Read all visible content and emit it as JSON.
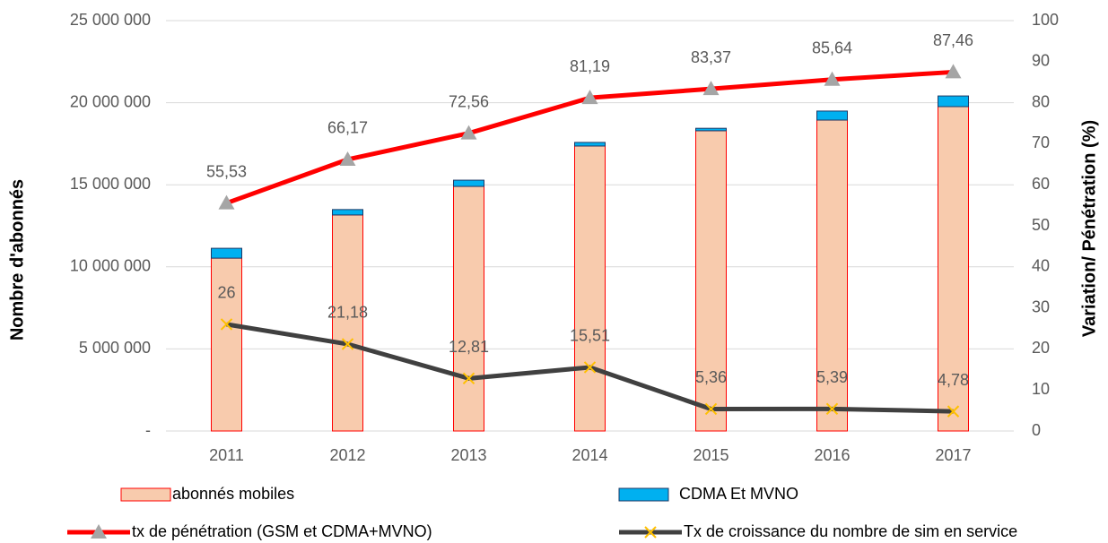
{
  "chart_data": {
    "type": "bar-line",
    "categories": [
      "2011",
      "2012",
      "2013",
      "2014",
      "2015",
      "2016",
      "2017"
    ],
    "ylabel": "Nombre d'abonnés",
    "y2label": "Variation/ Pénétration (%)",
    "ylim": [
      0,
      25000000
    ],
    "yticks": [
      {
        "value": 0,
        "label": "-"
      },
      {
        "value": 5000000,
        "label": "5 000 000"
      },
      {
        "value": 10000000,
        "label": "10 000 000"
      },
      {
        "value": 15000000,
        "label": "15 000 000"
      },
      {
        "value": 20000000,
        "label": "20 000 000"
      },
      {
        "value": 25000000,
        "label": "25 000 000"
      }
    ],
    "y2lim": [
      0,
      100
    ],
    "y2ticks": [
      0,
      10,
      20,
      30,
      40,
      50,
      60,
      70,
      80,
      90,
      100
    ],
    "grid": true,
    "series": [
      {
        "name": "abonnés mobiles",
        "type": "bar",
        "color": "#f8cbad",
        "edge": "#ff0000",
        "values": [
          10530000,
          13160000,
          14900000,
          17360000,
          18290000,
          18940000,
          19760000
        ]
      },
      {
        "name": "CDMA Et MVNO",
        "type": "bar",
        "color": "#00b0f0",
        "edge": "#1f3864",
        "values": [
          600000,
          330000,
          380000,
          220000,
          150000,
          550000,
          650000
        ]
      },
      {
        "name": "tx de pénétration (GSM et CDMA+MVNO)",
        "type": "line",
        "axis": "y2",
        "color": "#ff0000",
        "marker_color": "#a5a5a5",
        "values": [
          55.53,
          66.17,
          72.56,
          81.19,
          83.37,
          85.64,
          87.46
        ],
        "value_labels": [
          "55,53",
          "66,17",
          "72,56",
          "81,19",
          "83,37",
          "85,64",
          "87,46"
        ]
      },
      {
        "name": "Tx de croissance  du nombre de sim en service",
        "type": "line",
        "axis": "y2",
        "color": "#404040",
        "marker_color": "#ffc000",
        "values": [
          26,
          21.18,
          12.81,
          15.51,
          5.36,
          5.39,
          4.78
        ],
        "value_labels": [
          "26",
          "21,18",
          "12,81",
          "15,51",
          "5,36",
          "5,39",
          "4,78"
        ]
      }
    ]
  }
}
